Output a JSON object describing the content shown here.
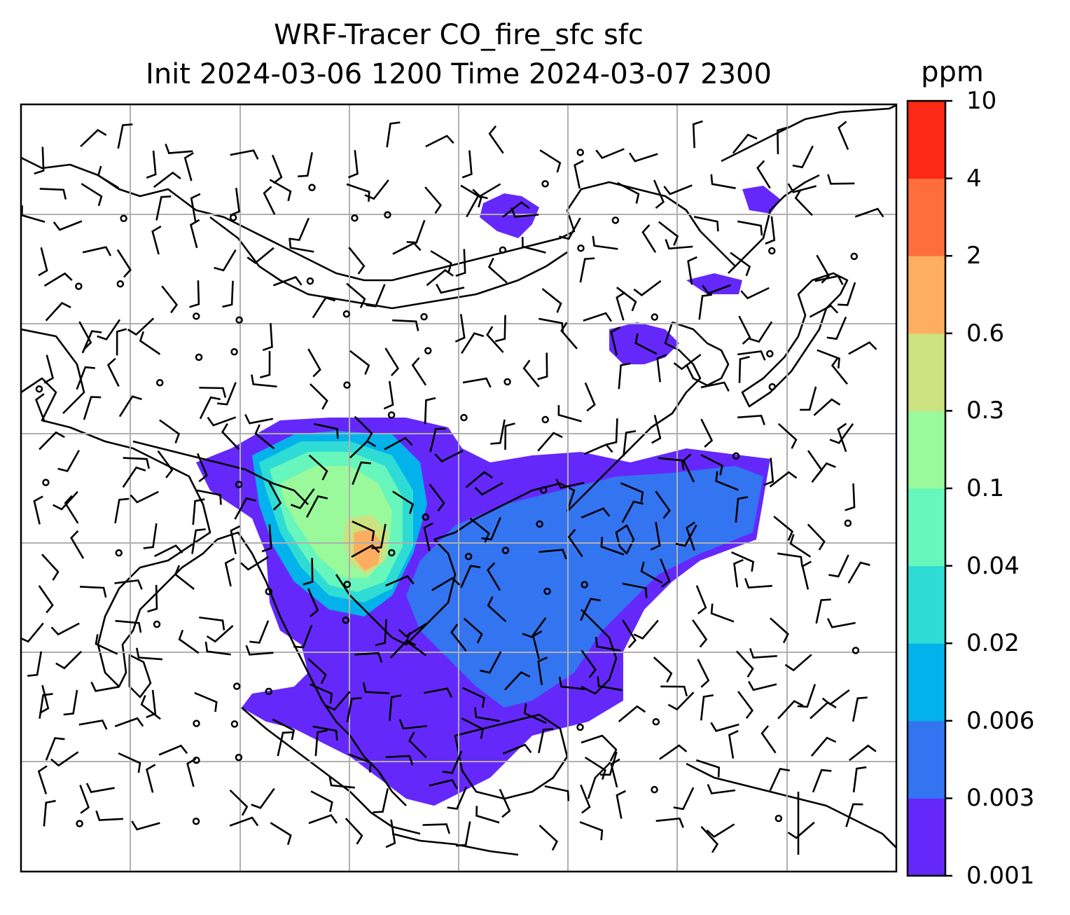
{
  "title_line1": "WRF-Tracer CO_fire_sfc sfc",
  "title_line2": "Init 2024-03-06 1200 Time 2024-03-07 2300",
  "colorbar": {
    "unit": "ppm",
    "levels": [
      "0.001",
      "0.003",
      "0.006",
      "0.02",
      "0.04",
      "0.1",
      "0.3",
      "0.6",
      "2",
      "4",
      "10"
    ],
    "colors": [
      "#6528fb",
      "#3374f1",
      "#03b2ea",
      "#2fdcd5",
      "#67f6bc",
      "#99f99b",
      "#cde280",
      "#feae61",
      "#fe6e3d",
      "#fd2816"
    ]
  },
  "map": {
    "land_fill": "#ffffff",
    "coast_color": "#000000",
    "grid_color": "#b0b0b0"
  }
}
